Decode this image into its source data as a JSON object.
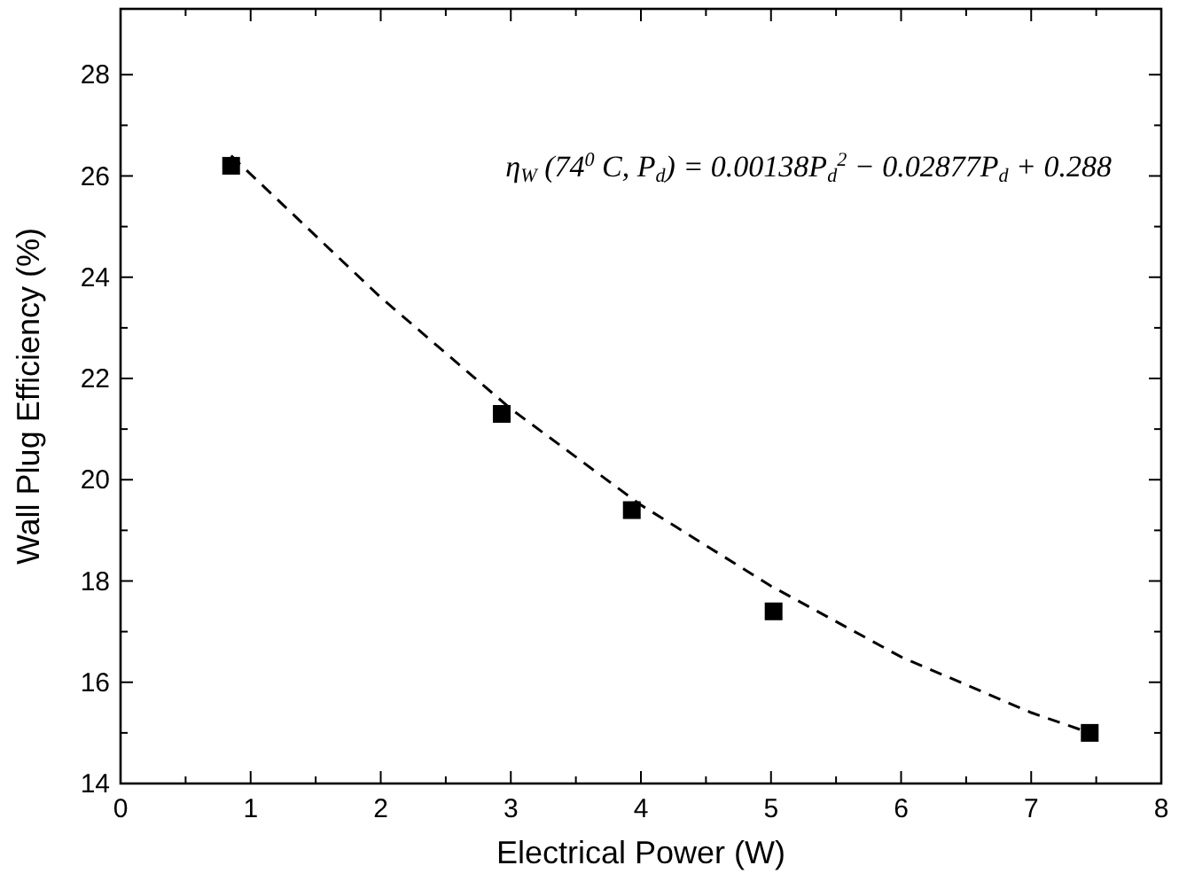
{
  "chart_data": {
    "type": "scatter",
    "xlabel": "Electrical Power (W)",
    "ylabel": "Wall Plug Efficiency (%)",
    "xlim": [
      0,
      8
    ],
    "ylim": [
      14,
      29.3
    ],
    "xticks": [
      0,
      {
        "value": 0.5,
        "label": null
      },
      1,
      {
        "value": 1.5,
        "label": null
      },
      2,
      {
        "value": 2.5,
        "label": null
      },
      3,
      {
        "value": 3.5,
        "label": null
      },
      4,
      {
        "value": 4.5,
        "label": null
      },
      5,
      {
        "value": 5.5,
        "label": null
      },
      6,
      {
        "value": 6.5,
        "label": null
      },
      7,
      {
        "value": 7.5,
        "label": null
      },
      8
    ],
    "yticks": [
      14,
      {
        "value": 15,
        "label": null
      },
      16,
      {
        "value": 17,
        "label": null
      },
      18,
      {
        "value": 19,
        "label": null
      },
      20,
      {
        "value": 21,
        "label": null
      },
      22,
      {
        "value": 23,
        "label": null
      },
      24,
      {
        "value": 25,
        "label": null
      },
      26,
      {
        "value": 27,
        "label": null
      },
      28
    ],
    "grid": false,
    "annotations": [
      "η$_{W}$ (74$^{0}$ C, P$_{d}$) = 0.00138P$_{d}$$^{2}$ − 0.02877P$_{d}$ + 0.288"
    ],
    "series": [
      {
        "color": "#000000",
        "marker": "square",
        "x": [
          0.85,
          2.93,
          3.93,
          5.02,
          7.45
        ],
        "values": [
          26.2,
          21.3,
          19.4,
          17.4,
          15.0
        ]
      },
      {
        "type": "line",
        "color": "#000000",
        "marker": "none",
        "line_style": "dashed",
        "x": [
          0.85,
          2,
          3,
          4,
          5,
          6,
          7,
          7.45
        ],
        "values": [
          26.4,
          23.6,
          21.4,
          19.5,
          17.9,
          16.5,
          15.4,
          15.0
        ]
      }
    ]
  }
}
